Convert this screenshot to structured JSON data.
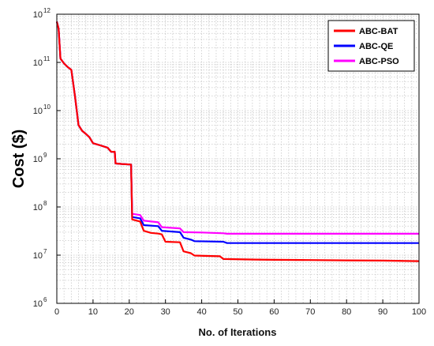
{
  "chart_data": {
    "type": "line",
    "xlabel": "No. of Iterations",
    "ylabel": "Cost ($)",
    "xlim": [
      0,
      100
    ],
    "ylim": [
      1000000,
      1000000000000
    ],
    "yscale": "log",
    "grid": true,
    "grid_style": "dotted",
    "legend_position": "top-right",
    "x_ticks": [
      "0",
      "10",
      "20",
      "30",
      "40",
      "50",
      "60",
      "70",
      "80",
      "90",
      "100"
    ],
    "y_ticks": [
      {
        "base": "10",
        "exp": "6",
        "value": 1000000
      },
      {
        "base": "10",
        "exp": "7",
        "value": 10000000
      },
      {
        "base": "10",
        "exp": "8",
        "value": 100000000
      },
      {
        "base": "10",
        "exp": "9",
        "value": 1000000000
      },
      {
        "base": "10",
        "exp": "10",
        "value": 10000000000
      },
      {
        "base": "10",
        "exp": "11",
        "value": 100000000000
      },
      {
        "base": "10",
        "exp": "12",
        "value": 1000000000000
      }
    ],
    "series": [
      {
        "name": "ABC-BAT",
        "color": "#ff0000",
        "points": [
          [
            0,
            700000000000
          ],
          [
            0.5,
            500000000000
          ],
          [
            1,
            120000000000
          ],
          [
            2,
            95000000000
          ],
          [
            3,
            80000000000
          ],
          [
            4,
            70000000000
          ],
          [
            5,
            20000000000
          ],
          [
            6,
            5000000000
          ],
          [
            7,
            3800000000
          ],
          [
            8,
            3300000000
          ],
          [
            9,
            2800000000
          ],
          [
            10,
            2100000000
          ],
          [
            12,
            1900000000
          ],
          [
            14,
            1700000000
          ],
          [
            15,
            1400000000
          ],
          [
            16,
            1400000000
          ],
          [
            16.2,
            800000000
          ],
          [
            18,
            780000000
          ],
          [
            20.5,
            760000000
          ],
          [
            20.8,
            55000000
          ],
          [
            23,
            50000000
          ],
          [
            24,
            32000000
          ],
          [
            26,
            29000000
          ],
          [
            28,
            28000000
          ],
          [
            29,
            27000000
          ],
          [
            30,
            19000000
          ],
          [
            34,
            18500000
          ],
          [
            35,
            12000000
          ],
          [
            37,
            11000000
          ],
          [
            38,
            9800000
          ],
          [
            45,
            9500000
          ],
          [
            46,
            8300000
          ],
          [
            55,
            8100000
          ],
          [
            60,
            8000000
          ],
          [
            70,
            7900000
          ],
          [
            80,
            7800000
          ],
          [
            90,
            7700000
          ],
          [
            100,
            7500000
          ]
        ]
      },
      {
        "name": "ABC-QE",
        "color": "#0000ff",
        "points": [
          [
            0,
            700000000000
          ],
          [
            0.5,
            500000000000
          ],
          [
            1,
            120000000000
          ],
          [
            2,
            95000000000
          ],
          [
            3,
            80000000000
          ],
          [
            4,
            70000000000
          ],
          [
            5,
            20000000000
          ],
          [
            6,
            5000000000
          ],
          [
            7,
            3800000000
          ],
          [
            8,
            3300000000
          ],
          [
            9,
            2800000000
          ],
          [
            10,
            2100000000
          ],
          [
            12,
            1900000000
          ],
          [
            14,
            1700000000
          ],
          [
            15,
            1400000000
          ],
          [
            16,
            1400000000
          ],
          [
            16.2,
            800000000
          ],
          [
            18,
            780000000
          ],
          [
            20.5,
            760000000
          ],
          [
            20.8,
            62000000
          ],
          [
            23,
            58000000
          ],
          [
            24,
            42000000
          ],
          [
            28,
            40000000
          ],
          [
            29,
            32000000
          ],
          [
            34,
            30000000
          ],
          [
            35,
            23000000
          ],
          [
            37,
            21000000
          ],
          [
            38,
            19500000
          ],
          [
            46,
            19000000
          ],
          [
            47,
            17800000
          ],
          [
            100,
            17800000
          ]
        ]
      },
      {
        "name": "ABC-PSO",
        "color": "#ff00ff",
        "points": [
          [
            0,
            700000000000
          ],
          [
            0.5,
            500000000000
          ],
          [
            1,
            120000000000
          ],
          [
            2,
            95000000000
          ],
          [
            3,
            80000000000
          ],
          [
            4,
            70000000000
          ],
          [
            5,
            20000000000
          ],
          [
            6,
            5000000000
          ],
          [
            7,
            3800000000
          ],
          [
            8,
            3300000000
          ],
          [
            9,
            2800000000
          ],
          [
            10,
            2100000000
          ],
          [
            12,
            1900000000
          ],
          [
            14,
            1700000000
          ],
          [
            15,
            1400000000
          ],
          [
            16,
            1400000000
          ],
          [
            16.2,
            800000000
          ],
          [
            18,
            780000000
          ],
          [
            20.5,
            760000000
          ],
          [
            20.8,
            72000000
          ],
          [
            23,
            68000000
          ],
          [
            24,
            52000000
          ],
          [
            28,
            48000000
          ],
          [
            29,
            38000000
          ],
          [
            34,
            36000000
          ],
          [
            35,
            30000000
          ],
          [
            40,
            29500000
          ],
          [
            46,
            28500000
          ],
          [
            47,
            27800000
          ],
          [
            100,
            27800000
          ]
        ]
      }
    ]
  }
}
